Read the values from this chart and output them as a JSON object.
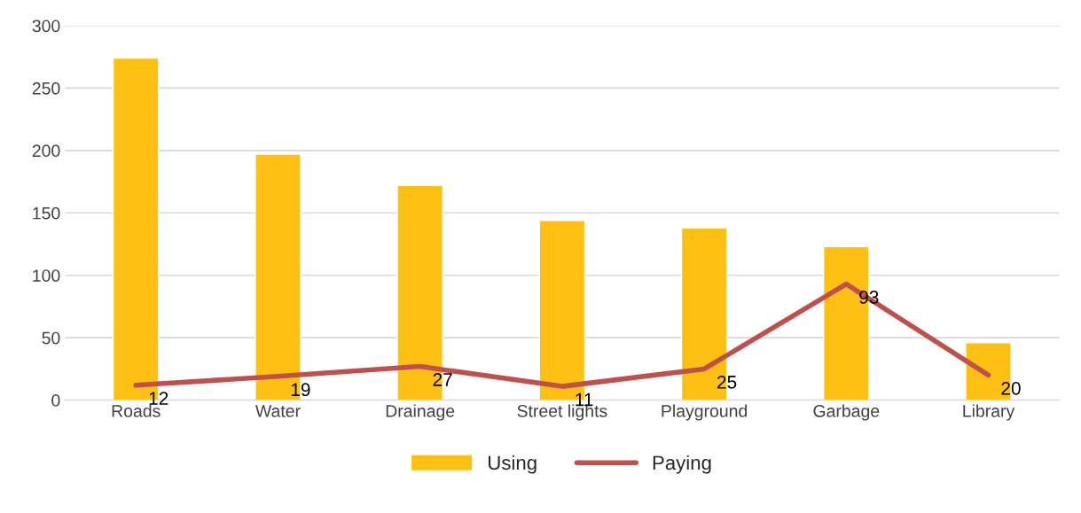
{
  "chart_data": {
    "type": "bar",
    "categories": [
      "Roads",
      "Water",
      "Drainage",
      "Street lights",
      "Playground",
      "Garbage",
      "Library"
    ],
    "series": [
      {
        "name": "Using",
        "color": "#fec013",
        "values": [
          274,
          197,
          172,
          144,
          138,
          123,
          46
        ]
      },
      {
        "name": "Paying",
        "type": "line",
        "color": "#c0504d",
        "values": [
          12,
          19,
          27,
          11,
          25,
          93,
          20
        ],
        "value_labels": [
          "12",
          "19",
          "27",
          "11",
          "25",
          "93",
          "20"
        ]
      }
    ],
    "ylim": [
      0,
      300
    ],
    "yticks": [
      0,
      50,
      100,
      150,
      200,
      250,
      300
    ],
    "grid": "y",
    "legend": "bottom",
    "marker": "none",
    "line_style": "solid"
  }
}
